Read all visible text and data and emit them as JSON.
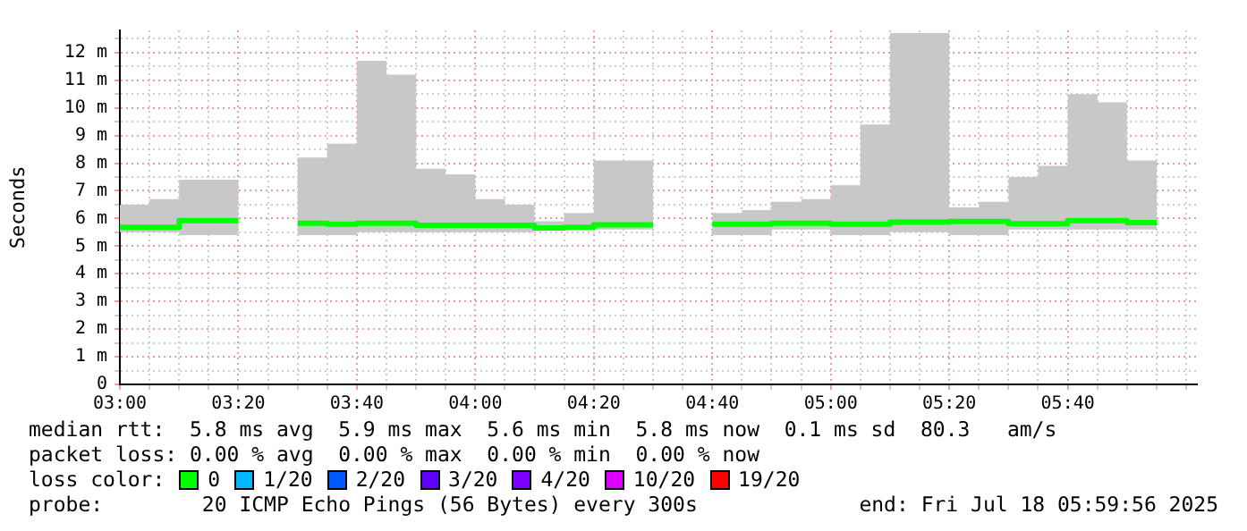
{
  "chart_data": {
    "type": "step",
    "ylabel": "Seconds",
    "legend_title": "loss color:",
    "legend": "bottom",
    "grid": true,
    "x": [
      3,
      3.0833,
      3.1667,
      3.25,
      3.3333,
      3.5,
      3.5833,
      3.6667,
      3.75,
      3.8333,
      3.9167,
      4,
      4.0833,
      4.1667,
      4.25,
      4.3333,
      4.4167,
      4.5,
      4.6667,
      4.75,
      4.8333,
      4.9167,
      5,
      5.0833,
      5.1667,
      5.25,
      5.3333,
      5.4167,
      5.5,
      5.5833,
      5.6667,
      5.75,
      5.8333,
      5.9167
    ],
    "xlim": [
      3,
      6.03
    ],
    "xticks": [
      {
        "value": 3,
        "label": "03:00"
      },
      {
        "value": 3.0833,
        "label": null
      },
      {
        "value": 3.1667,
        "label": null
      },
      {
        "value": 3.25,
        "label": null
      },
      {
        "value": 3.3333,
        "label": "03:20"
      },
      {
        "value": 3.4167,
        "label": null
      },
      {
        "value": 3.5,
        "label": null
      },
      {
        "value": 3.5833,
        "label": null
      },
      {
        "value": 3.6667,
        "label": "03:40"
      },
      {
        "value": 3.75,
        "label": null
      },
      {
        "value": 3.8333,
        "label": null
      },
      {
        "value": 3.9167,
        "label": null
      },
      {
        "value": 4,
        "label": "04:00"
      },
      {
        "value": 4.0833,
        "label": null
      },
      {
        "value": 4.1667,
        "label": null
      },
      {
        "value": 4.25,
        "label": null
      },
      {
        "value": 4.3333,
        "label": "04:20"
      },
      {
        "value": 4.4167,
        "label": null
      },
      {
        "value": 4.5,
        "label": null
      },
      {
        "value": 4.5833,
        "label": null
      },
      {
        "value": 4.6667,
        "label": "04:40"
      },
      {
        "value": 4.75,
        "label": null
      },
      {
        "value": 4.8333,
        "label": null
      },
      {
        "value": 4.9167,
        "label": null
      },
      {
        "value": 5,
        "label": "05:00"
      },
      {
        "value": 5.0833,
        "label": null
      },
      {
        "value": 5.1667,
        "label": null
      },
      {
        "value": 5.25,
        "label": null
      },
      {
        "value": 5.3333,
        "label": "05:20"
      },
      {
        "value": 5.4167,
        "label": null
      },
      {
        "value": 5.5,
        "label": null
      },
      {
        "value": 5.5833,
        "label": null
      },
      {
        "value": 5.6667,
        "label": "05:40"
      },
      {
        "value": 5.75,
        "label": null
      },
      {
        "value": 5.8333,
        "label": null
      },
      {
        "value": 5.9167,
        "label": null
      },
      {
        "value": 6,
        "label": null
      }
    ],
    "ylim": [
      0,
      12.8
    ],
    "yticks": [
      0,
      {
        "value": 0.5,
        "label": null
      },
      {
        "value": 1,
        "label": "1 m"
      },
      {
        "value": 1.5,
        "label": null
      },
      {
        "value": 2,
        "label": "2 m"
      },
      {
        "value": 2.5,
        "label": null
      },
      {
        "value": 3,
        "label": "3 m"
      },
      {
        "value": 3.5,
        "label": null
      },
      {
        "value": 4,
        "label": "4 m"
      },
      {
        "value": 4.5,
        "label": null
      },
      {
        "value": 5,
        "label": "5 m"
      },
      {
        "value": 5.5,
        "label": null
      },
      {
        "value": 6,
        "label": "6 m"
      },
      {
        "value": 6.5,
        "label": null
      },
      {
        "value": 7,
        "label": "7 m"
      },
      {
        "value": 7.5,
        "label": null
      },
      {
        "value": 8,
        "label": "8 m"
      },
      {
        "value": 8.5,
        "label": null
      },
      {
        "value": 9,
        "label": "9 m"
      },
      {
        "value": 9.5,
        "label": null
      },
      {
        "value": 10,
        "label": "10 m"
      },
      {
        "value": 10.5,
        "label": null
      },
      {
        "value": 11,
        "label": "11 m"
      },
      {
        "value": 11.5,
        "label": null
      },
      {
        "value": 12,
        "label": "12 m"
      },
      {
        "value": 12.5,
        "label": null
      }
    ],
    "series": [
      {
        "name": "0",
        "color": "#00ff00",
        "values": [
          5.68,
          5.68,
          5.92,
          5.92,
          null,
          5.83,
          5.79,
          5.83,
          5.83,
          5.75,
          5.75,
          5.75,
          5.75,
          5.66,
          5.68,
          5.77,
          5.77,
          null,
          5.79,
          5.79,
          5.83,
          5.83,
          5.79,
          5.79,
          5.87,
          5.87,
          5.89,
          5.89,
          5.81,
          5.81,
          5.92,
          5.92,
          5.85,
          5.85
        ],
        "lower": [
          5.5,
          5.5,
          5.4,
          5.4,
          null,
          5.4,
          5.4,
          5.5,
          5.5,
          5.5,
          5.5,
          5.5,
          5.5,
          5.6,
          5.6,
          5.6,
          5.6,
          null,
          5.4,
          5.4,
          5.6,
          5.6,
          5.4,
          5.4,
          5.5,
          5.5,
          5.4,
          5.4,
          5.6,
          5.6,
          5.6,
          5.6,
          5.6,
          5.6
        ],
        "upper": [
          6.5,
          6.7,
          7.4,
          7.4,
          null,
          8.2,
          8.7,
          11.7,
          11.2,
          7.8,
          7.6,
          6.7,
          6.5,
          5.9,
          6.2,
          8.1,
          8.1,
          null,
          6.2,
          6.3,
          6.6,
          6.7,
          7.2,
          9.4,
          12.7,
          12.7,
          6.4,
          6.6,
          7.5,
          7.9,
          10.5,
          10.2,
          8.1,
          8.1
        ]
      },
      {
        "name": "1/20",
        "color": "#00b8ff",
        "values": [
          null,
          null,
          null,
          null,
          null,
          null,
          null,
          null,
          null,
          null,
          null,
          null,
          null,
          null,
          null,
          null,
          null,
          null,
          null,
          null,
          null,
          null,
          null,
          null,
          null,
          null,
          null,
          null,
          null,
          null,
          null,
          null,
          null,
          null
        ]
      },
      {
        "name": "2/20",
        "color": "#0059ff",
        "values": [
          null,
          null,
          null,
          null,
          null,
          null,
          null,
          null,
          null,
          null,
          null,
          null,
          null,
          null,
          null,
          null,
          null,
          null,
          null,
          null,
          null,
          null,
          null,
          null,
          null,
          null,
          null,
          null,
          null,
          null,
          null,
          null,
          null,
          null
        ]
      },
      {
        "name": "3/20",
        "color": "#5e00ff",
        "values": [
          null,
          null,
          null,
          null,
          null,
          null,
          null,
          null,
          null,
          null,
          null,
          null,
          null,
          null,
          null,
          null,
          null,
          null,
          null,
          null,
          null,
          null,
          null,
          null,
          null,
          null,
          null,
          null,
          null,
          null,
          null,
          null,
          null,
          null
        ]
      },
      {
        "name": "4/20",
        "color": "#7e00ff",
        "values": [
          null,
          null,
          null,
          null,
          null,
          null,
          null,
          null,
          null,
          null,
          null,
          null,
          null,
          null,
          null,
          null,
          null,
          null,
          null,
          null,
          null,
          null,
          null,
          null,
          null,
          null,
          null,
          null,
          null,
          null,
          null,
          null,
          null,
          null
        ]
      },
      {
        "name": "10/20",
        "color": "#dd00ff",
        "values": [
          null,
          null,
          null,
          null,
          null,
          null,
          null,
          null,
          null,
          null,
          null,
          null,
          null,
          null,
          null,
          null,
          null,
          null,
          null,
          null,
          null,
          null,
          null,
          null,
          null,
          null,
          null,
          null,
          null,
          null,
          null,
          null,
          null,
          null
        ]
      },
      {
        "name": "19/20",
        "color": "#ff0000",
        "values": [
          null,
          null,
          null,
          null,
          null,
          null,
          null,
          null,
          null,
          null,
          null,
          null,
          null,
          null,
          null,
          null,
          null,
          null,
          null,
          null,
          null,
          null,
          null,
          null,
          null,
          null,
          null,
          null,
          null,
          null,
          null,
          null,
          null,
          null
        ]
      }
    ],
    "annotations": [
      "median rtt:  5.8 ms avg  5.9 ms max  5.6 ms min  5.8 ms now  0.1 ms sd  80.3   am/s",
      "packet loss: 0.00 % avg  0.00 % max  0.00 % min  0.00 % now",
      "probe:        20 ICMP Echo Pings (56 Bytes) every 300s",
      "end: Fri Jul 18 05:59:56 2025"
    ]
  }
}
